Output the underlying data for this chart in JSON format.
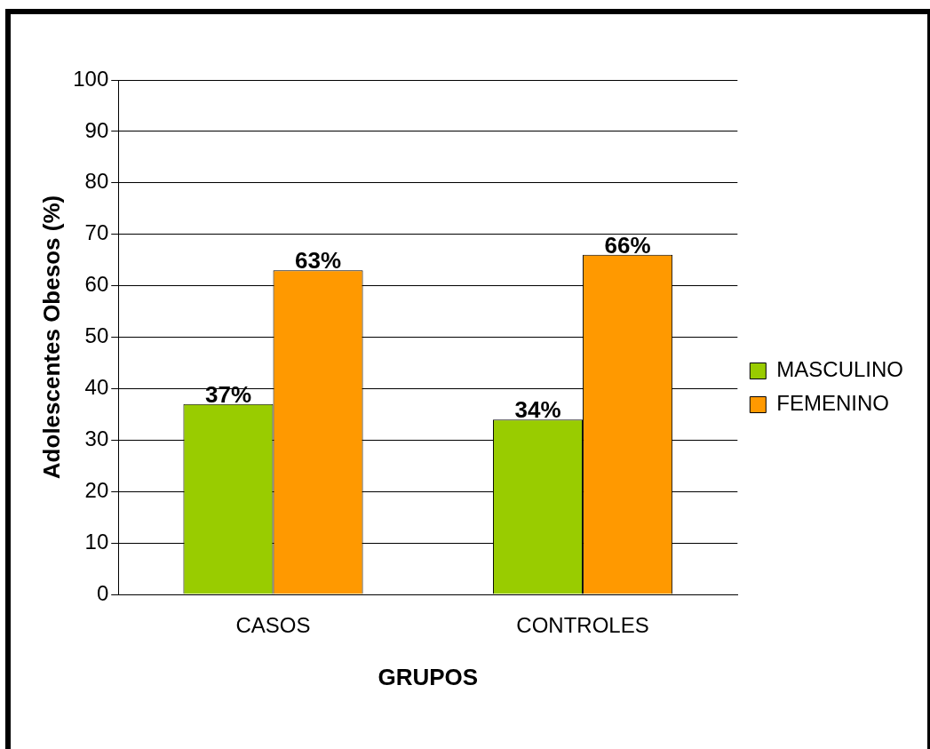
{
  "chart_data": {
    "type": "bar",
    "xlabel": "GRUPOS",
    "ylabel": "Adolescentes Obesos (%)",
    "categories": [
      "CASOS",
      "CONTROLES"
    ],
    "series": [
      {
        "name": "MASCULINO",
        "color": "#99cc00",
        "values": [
          37,
          34
        ],
        "value_labels": [
          "37%",
          "34%"
        ]
      },
      {
        "name": "FEMENINO",
        "color": "#ff9900",
        "values": [
          63,
          66
        ],
        "value_labels": [
          "63%",
          "66%"
        ]
      }
    ],
    "ylim": [
      0,
      100
    ],
    "yticks": [
      0,
      10,
      20,
      30,
      40,
      50,
      60,
      70,
      80,
      90,
      100
    ],
    "grid": "y",
    "legend": "right"
  }
}
